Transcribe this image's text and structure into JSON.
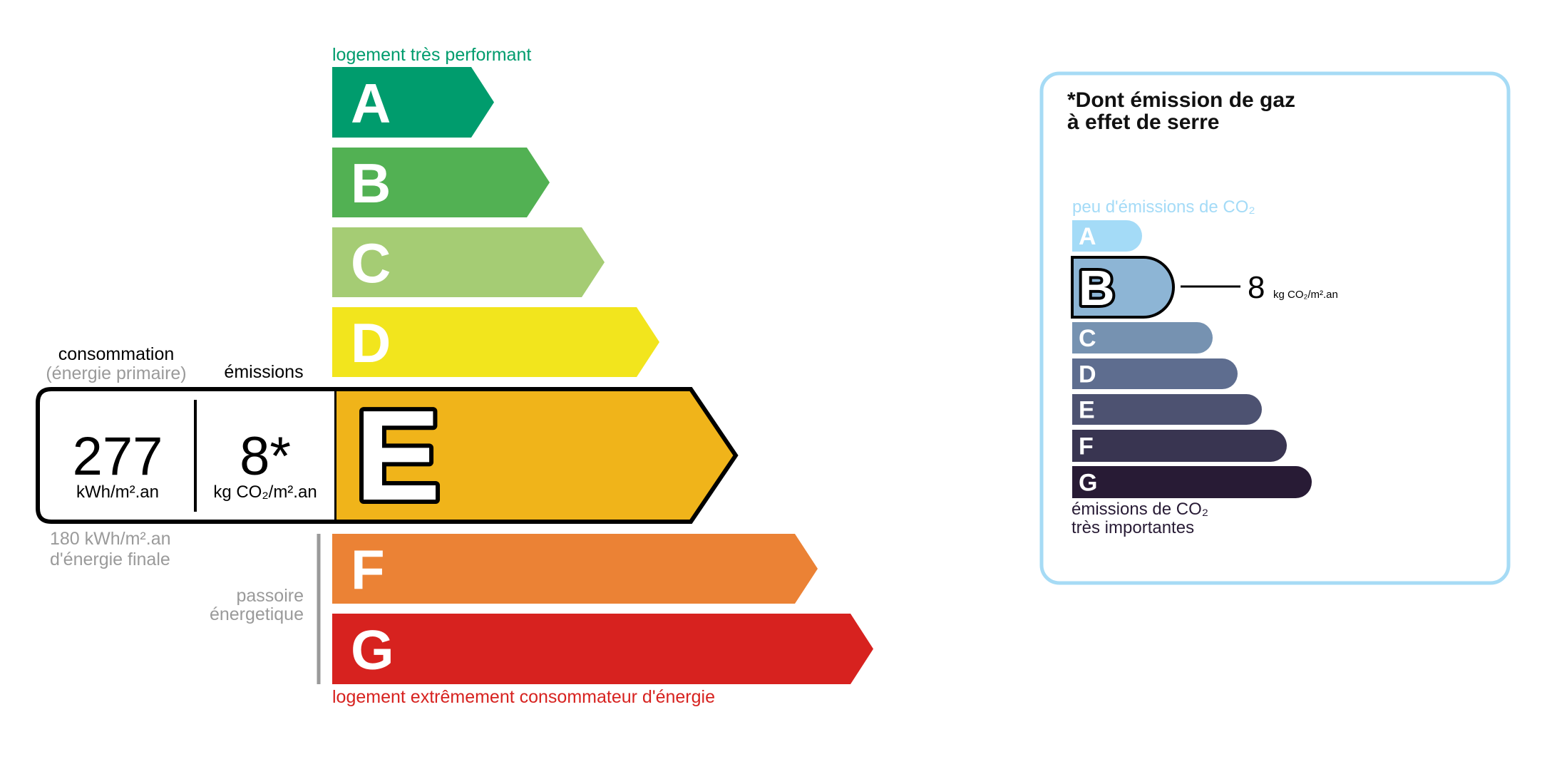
{
  "energy": {
    "top_label": "logement très performant",
    "bottom_label": "logement extrêmement consommateur d'énergie",
    "classes": [
      {
        "letter": "A",
        "color": "#009c6d"
      },
      {
        "letter": "B",
        "color": "#52b153"
      },
      {
        "letter": "C",
        "color": "#a5cc74"
      },
      {
        "letter": "D",
        "color": "#f2e51d"
      },
      {
        "letter": "E",
        "color": "#f0b41a"
      },
      {
        "letter": "F",
        "color": "#eb8235"
      },
      {
        "letter": "G",
        "color": "#d7221f"
      }
    ],
    "current_class": "E",
    "consumption_label": "consommation",
    "consumption_sub": "(énergie primaire)",
    "emissions_label": "émissions",
    "consumption_value": "277",
    "consumption_unit": "kWh/m².an",
    "emissions_value": "8*",
    "emissions_unit": "kg CO₂/m².an",
    "final_energy_line1": "180 kWh/m².an",
    "final_energy_line2": "d'énergie finale",
    "passoire_line1": "passoire",
    "passoire_line2": "énergetique",
    "top_color": "#009c6d",
    "bottom_color": "#d7221f"
  },
  "ghg": {
    "title_line1": "*Dont émission de gaz",
    "title_line2": "à effet de serre",
    "top_label": "peu d'émissions de CO₂",
    "bottom_line1": "émissions de CO₂",
    "bottom_line2": "très importantes",
    "classes": [
      {
        "letter": "A",
        "color": "#a4dbf7"
      },
      {
        "letter": "B",
        "color": "#8db5d5"
      },
      {
        "letter": "C",
        "color": "#7692b1"
      },
      {
        "letter": "D",
        "color": "#5e6d8f"
      },
      {
        "letter": "E",
        "color": "#4d5271"
      },
      {
        "letter": "F",
        "color": "#393551"
      },
      {
        "letter": "G",
        "color": "#281b35"
      }
    ],
    "current_class": "B",
    "value": "8",
    "unit": "kg CO₂/m².an",
    "border_color": "#a6dbf5"
  }
}
